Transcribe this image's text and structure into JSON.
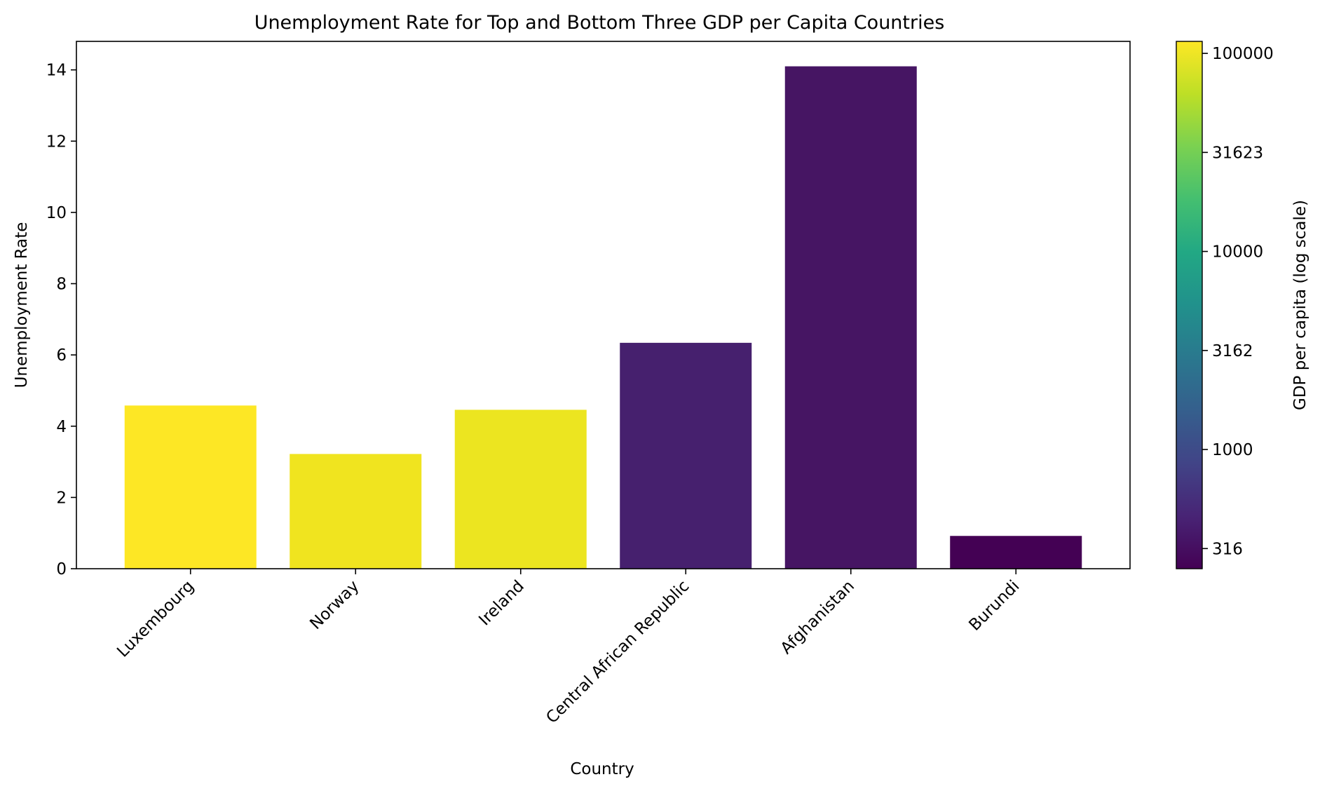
{
  "chart_data": {
    "type": "bar",
    "title": "Unemployment Rate for Top and Bottom Three GDP per Capita Countries",
    "xlabel": "Country",
    "ylabel": "Unemployment Rate",
    "categories": [
      "Luxembourg",
      "Norway",
      "Ireland",
      "Central African Republic",
      "Afghanistan",
      "Burundi"
    ],
    "values": [
      4.58,
      3.22,
      4.46,
      6.34,
      14.1,
      0.92
    ],
    "bar_colors": [
      "#fde725",
      "#f0e41f",
      "#ece520",
      "#46206e",
      "#461563",
      "#440154"
    ],
    "ylim": [
      0,
      14.8
    ],
    "yticks": [
      0,
      2,
      4,
      6,
      8,
      10,
      12,
      14
    ],
    "grid": false,
    "colorbar": {
      "label": "GDP per capita (log scale)",
      "scale": "log",
      "colormap": "viridis",
      "range": [
        250,
        115000
      ],
      "ticks": [
        316,
        1000,
        3162,
        10000,
        31623,
        100000
      ],
      "tick_labels": [
        "316",
        "1000",
        "3162",
        "10000",
        "31623",
        "100000"
      ]
    }
  }
}
